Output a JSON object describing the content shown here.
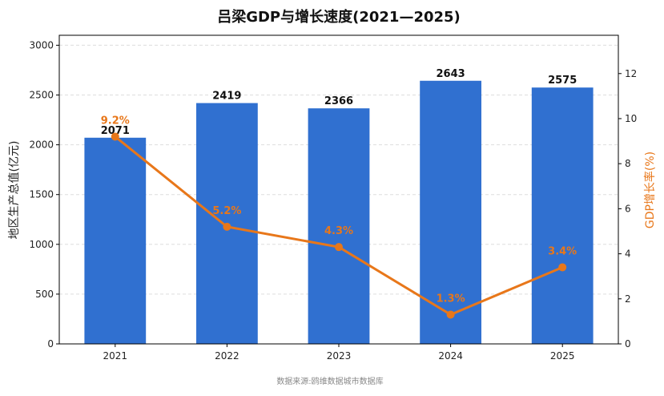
{
  "chart_data": {
    "type": "bar+line",
    "title": "吕梁GDP与增长速度(2021—2025)",
    "categories": [
      "2021",
      "2022",
      "2023",
      "2024",
      "2025"
    ],
    "y_left": {
      "label": "地区生产总值(亿元)",
      "ylim": [
        0,
        3100
      ],
      "ticks": [
        0,
        500,
        1000,
        1500,
        2000,
        2500,
        3000
      ]
    },
    "y_right": {
      "label": "GDP增长率(%)",
      "ylim": [
        0,
        13.7
      ],
      "ticks": [
        0,
        2,
        4,
        6,
        8,
        10,
        12
      ]
    },
    "series": [
      {
        "type": "bar",
        "values": [
          2071,
          2419,
          2366,
          2643,
          2575
        ],
        "value_labels": [
          "2071",
          "2419",
          "2366",
          "2643",
          "2575"
        ],
        "color": "#3070D0"
      },
      {
        "type": "line",
        "values": [
          9.2,
          5.2,
          4.3,
          1.3,
          3.4
        ],
        "value_labels": [
          "9.2%",
          "5.2%",
          "4.3%",
          "1.3%",
          "3.4%"
        ],
        "color": "#E8771A"
      }
    ],
    "grid": true,
    "source": "数据来源:鸥维数据城市数据库"
  }
}
